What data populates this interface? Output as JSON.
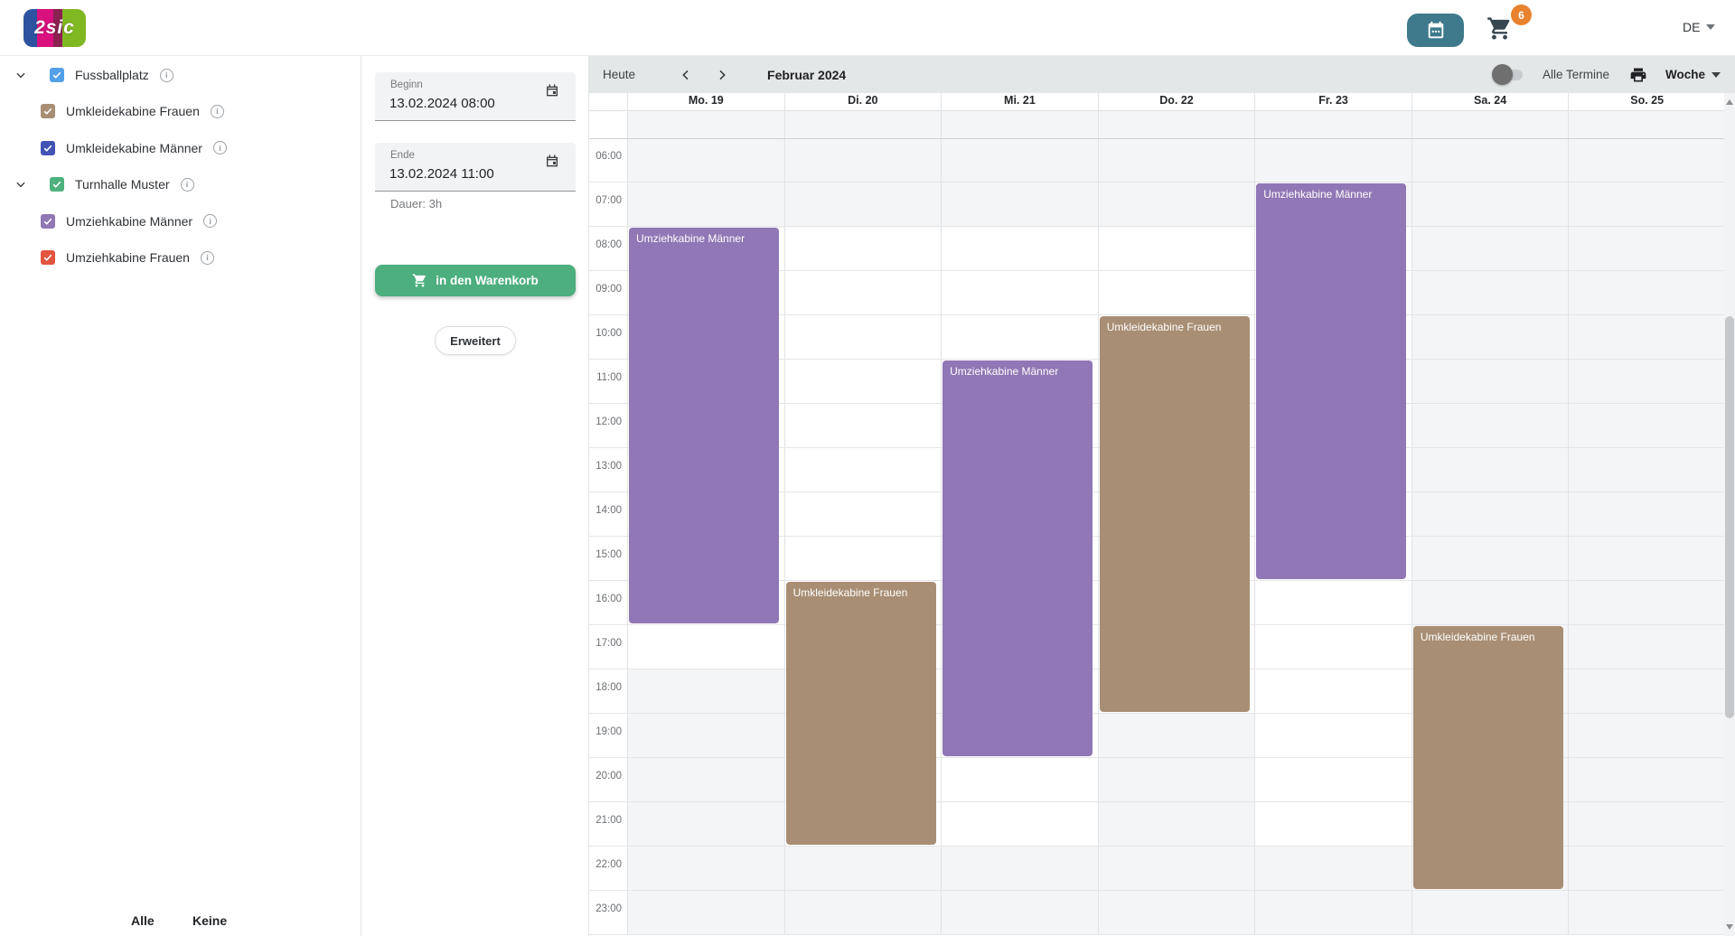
{
  "topbar": {
    "logo_text": "2sic",
    "cart_count": "6",
    "language": "DE"
  },
  "sidebar": {
    "items": [
      {
        "label": "Fussballplatz",
        "color": "#54a0e8",
        "checked": true,
        "parent": true
      },
      {
        "label": "Umkleidekabine Frauen",
        "color": "#a88e74",
        "checked": true,
        "parent": false
      },
      {
        "label": "Umkleidekabine Männer",
        "color": "#4253b4",
        "checked": true,
        "parent": false
      },
      {
        "label": "Turnhalle Muster",
        "color": "#4cb17c",
        "checked": true,
        "parent": true
      },
      {
        "label": "Umziehkabine Männer",
        "color": "#9077b5",
        "checked": true,
        "parent": false
      },
      {
        "label": "Umziehkabine Frauen",
        "color": "#e2563f",
        "checked": true,
        "parent": false
      }
    ],
    "select_all_label": "Alle",
    "select_none_label": "Keine"
  },
  "booking_form": {
    "begin_label": "Beginn",
    "begin_value": "13.02.2024 08:00",
    "end_label": "Ende",
    "end_value": "13.02.2024 11:00",
    "duration_label": "Dauer: 3h",
    "add_to_cart_label": "in den Warenkorb",
    "advanced_label": "Erweitert"
  },
  "calendar": {
    "today_label": "Heute",
    "month_label": "Februar 2024",
    "all_appointments_label": "Alle Termine",
    "view_label": "Woche",
    "days": [
      "Mo. 19",
      "Di. 20",
      "Mi. 21",
      "Do. 22",
      "Fr. 23",
      "Sa. 24",
      "So. 25"
    ],
    "hours": [
      "06:00",
      "07:00",
      "08:00",
      "09:00",
      "10:00",
      "11:00",
      "12:00",
      "13:00",
      "14:00",
      "15:00",
      "16:00",
      "17:00",
      "18:00",
      "19:00",
      "20:00",
      "21:00",
      "22:00",
      "23:00"
    ],
    "available_ranges": [
      {
        "day": 0,
        "from": 8,
        "to": 18
      },
      {
        "day": 1,
        "from": 8,
        "to": 22
      },
      {
        "day": 2,
        "from": 8,
        "to": 22
      },
      {
        "day": 3,
        "from": 8,
        "to": 19
      },
      {
        "day": 4,
        "from": 8,
        "to": 22
      }
    ],
    "events": [
      {
        "day": 0,
        "title": "Umziehkabine Männer",
        "start": 8,
        "end": 17,
        "color": "#9077b5"
      },
      {
        "day": 1,
        "title": "Umkleidekabine Frauen",
        "start": 16,
        "end": 22,
        "color": "#a88e74"
      },
      {
        "day": 2,
        "title": "Umziehkabine Männer",
        "start": 11,
        "end": 20,
        "color": "#9077b5"
      },
      {
        "day": 3,
        "title": "Umkleidekabine Frauen",
        "start": 10,
        "end": 19,
        "color": "#a88e74"
      },
      {
        "day": 4,
        "title": "Umziehkabine Männer",
        "start": 7,
        "end": 16,
        "color": "#9077b5"
      },
      {
        "day": 5,
        "title": "Umkleidekabine Frauen",
        "start": 17,
        "end": 23,
        "color": "#a88e74"
      }
    ]
  },
  "colors": {
    "accent_teal": "#3e7a8b",
    "accent_green": "#4caf7d",
    "badge_orange": "#e8822e",
    "event_purple": "#9077b5",
    "event_brown": "#a88e74",
    "toolbar_gray": "#e3e7e8",
    "cell_gray": "#f4f5f7"
  }
}
